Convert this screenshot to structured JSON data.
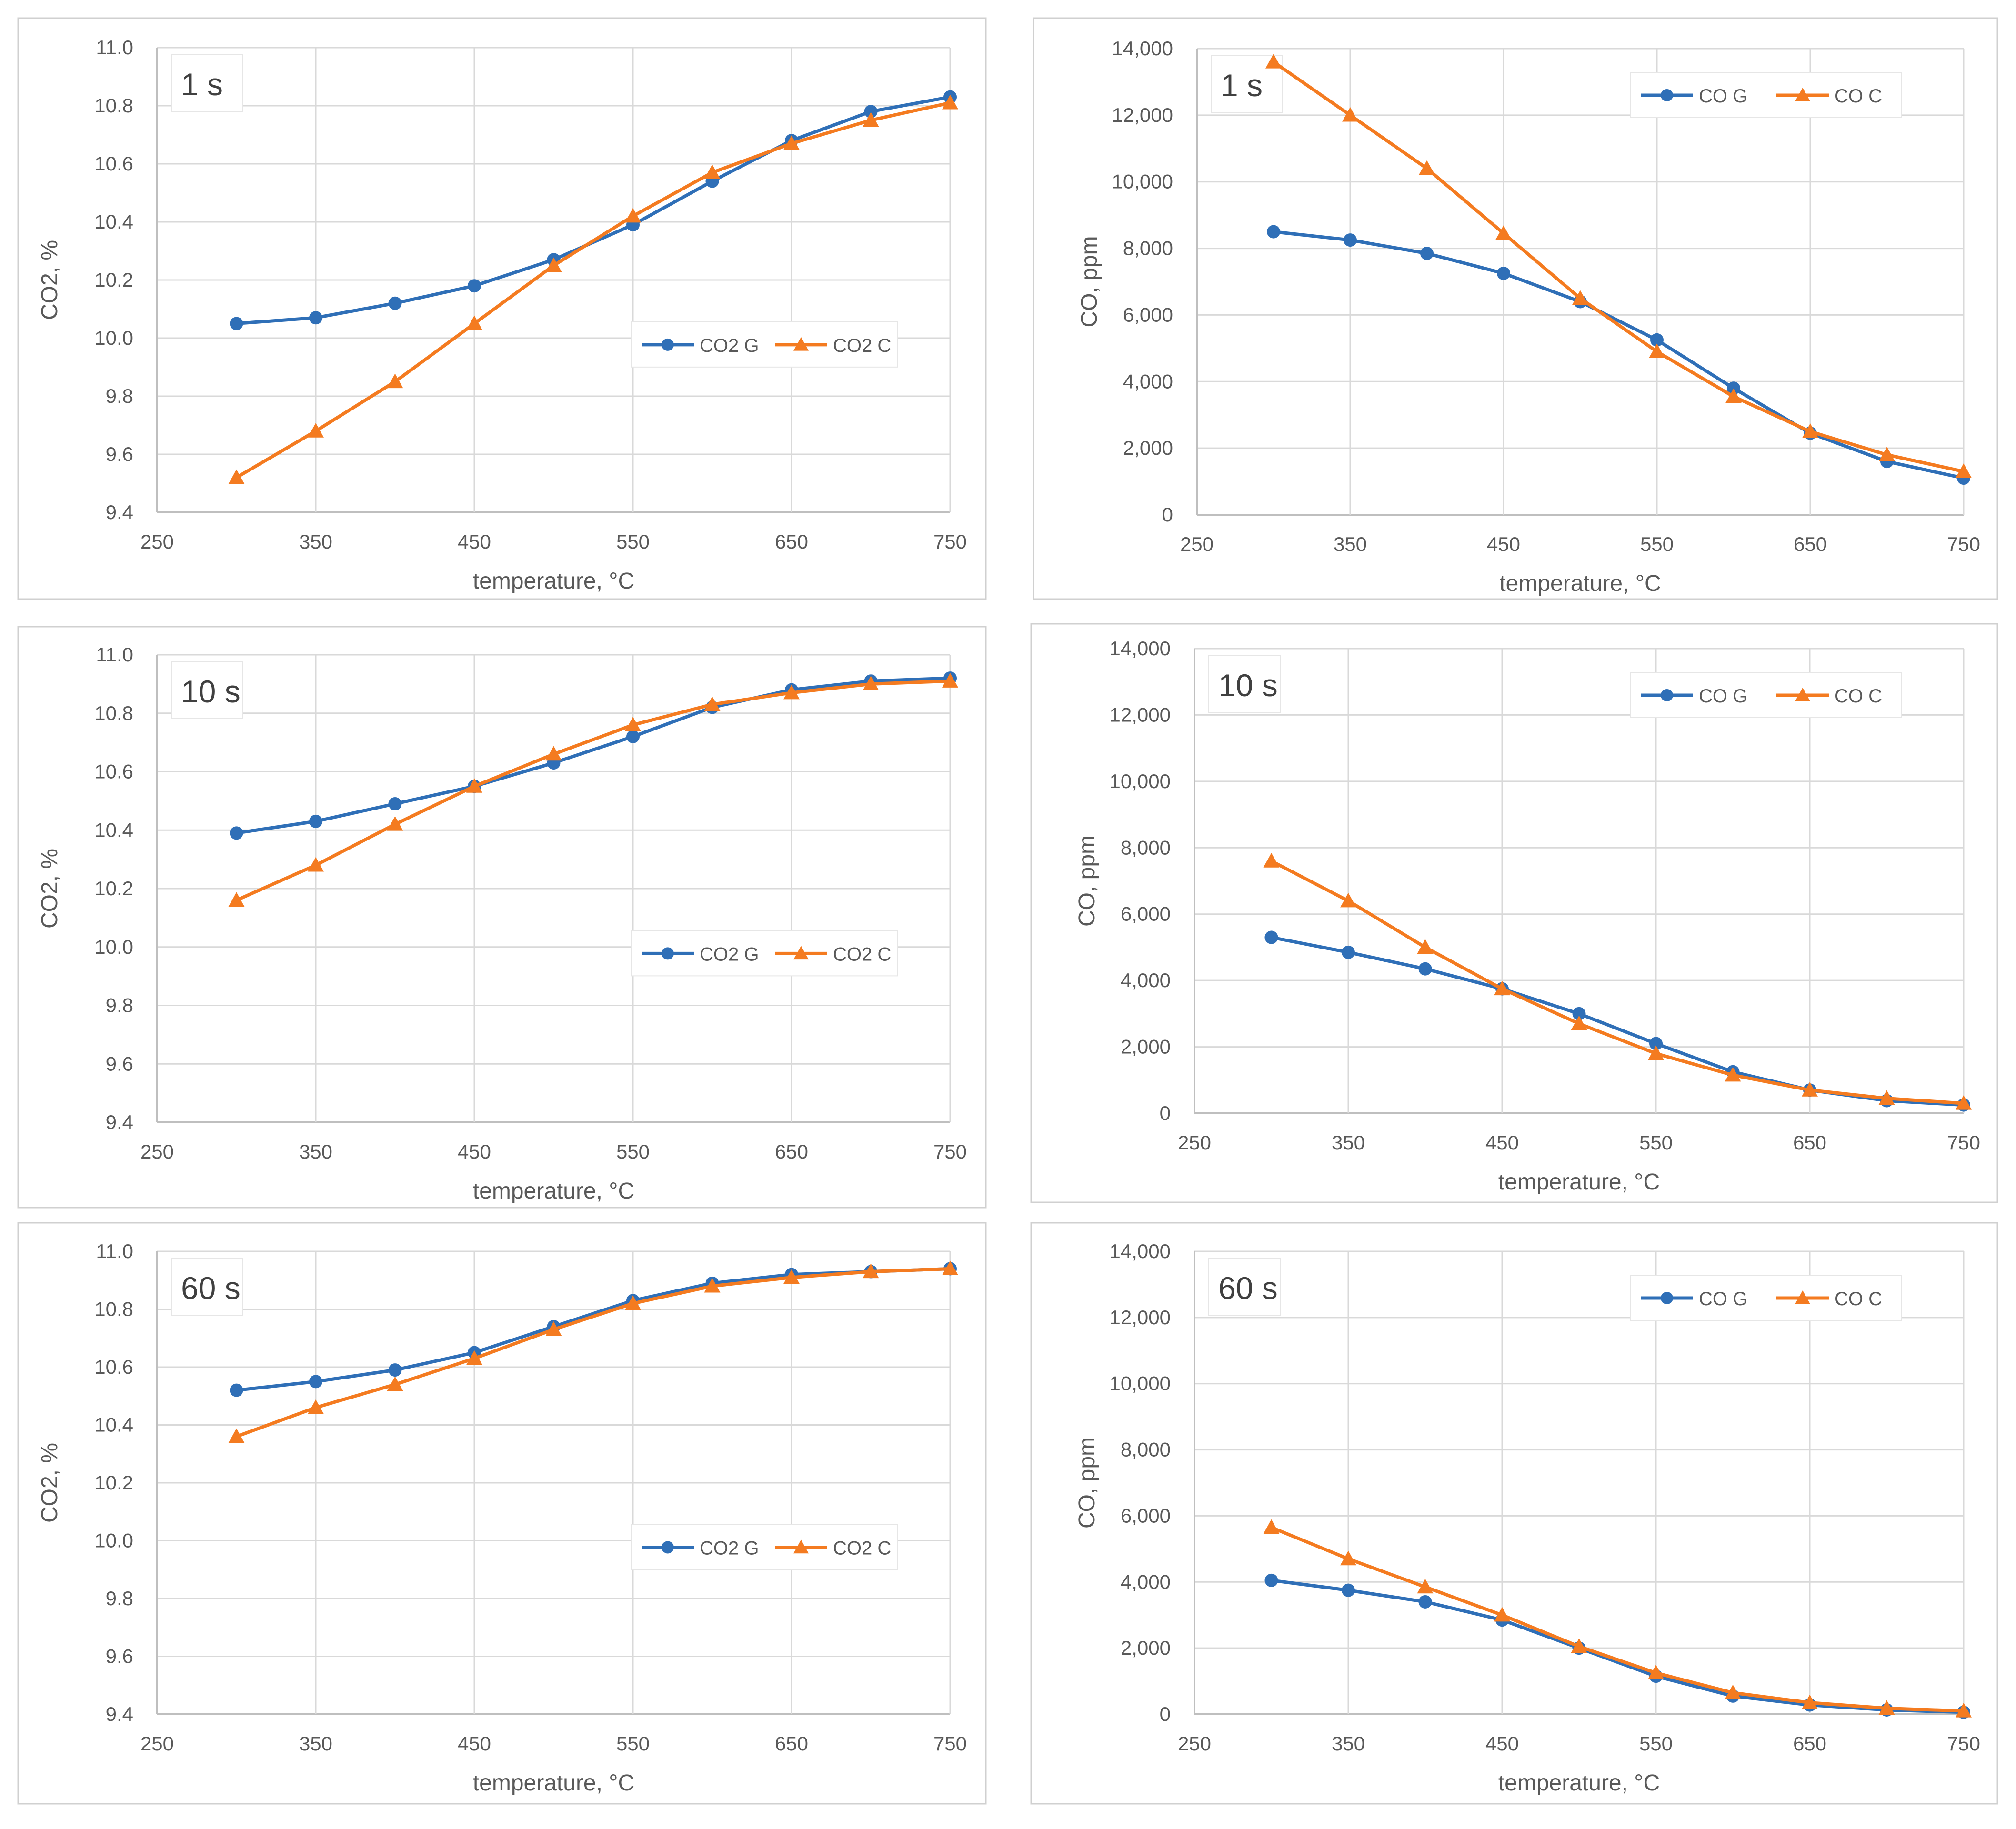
{
  "colors": {
    "g_series": "#2f6fb7",
    "c_series": "#f47b20",
    "grid": "#d9d9d9",
    "axis": "#bfbfbf",
    "text": "#595959"
  },
  "chart_data": [
    {
      "type": "line",
      "time_label": "1 s",
      "xlabel": "temperature, °C",
      "ylabel": "CO2, %",
      "xlim": [
        250,
        750
      ],
      "ylim": [
        9.4,
        11.0
      ],
      "xticks": [
        "250",
        "350",
        "450",
        "550",
        "650",
        "750"
      ],
      "yticks": [
        "9.4",
        "9.6",
        "9.8",
        "10.0",
        "10.2",
        "10.4",
        "10.6",
        "10.8",
        "11.0"
      ],
      "legend_position": "center-right",
      "x": [
        300,
        350,
        400,
        450,
        500,
        550,
        600,
        650,
        700,
        750
      ],
      "series": [
        {
          "name": "CO2 G",
          "marker": "circle",
          "values": [
            10.05,
            10.07,
            10.12,
            10.18,
            10.27,
            10.39,
            10.54,
            10.68,
            10.78,
            10.83
          ]
        },
        {
          "name": "CO2 C",
          "marker": "triangle",
          "values": [
            9.52,
            9.68,
            9.85,
            10.05,
            10.25,
            10.42,
            10.57,
            10.67,
            10.75,
            10.81
          ]
        }
      ]
    },
    {
      "type": "line",
      "time_label": "1 s",
      "xlabel": "temperature, °C",
      "ylabel": "CO, ppm",
      "xlim": [
        250,
        750
      ],
      "ylim": [
        0,
        14000
      ],
      "xticks": [
        "250",
        "350",
        "450",
        "550",
        "650",
        "750"
      ],
      "yticks": [
        "0",
        "2,000",
        "4,000",
        "6,000",
        "8,000",
        "10,000",
        "12,000",
        "14,000"
      ],
      "legend_position": "top-right",
      "x": [
        300,
        350,
        400,
        450,
        500,
        550,
        600,
        650,
        700,
        750
      ],
      "series": [
        {
          "name": "CO G",
          "marker": "circle",
          "values": [
            8500,
            8250,
            7850,
            7250,
            6400,
            5250,
            3800,
            2450,
            1600,
            1100
          ]
        },
        {
          "name": "CO C",
          "marker": "triangle",
          "values": [
            13600,
            12000,
            10400,
            8450,
            6500,
            4900,
            3550,
            2500,
            1800,
            1300
          ]
        }
      ]
    },
    {
      "type": "line",
      "time_label": "10 s",
      "xlabel": "temperature, °C",
      "ylabel": "CO2, %",
      "xlim": [
        250,
        750
      ],
      "ylim": [
        9.4,
        11.0
      ],
      "xticks": [
        "250",
        "350",
        "450",
        "550",
        "650",
        "750"
      ],
      "yticks": [
        "9.4",
        "9.6",
        "9.8",
        "10.0",
        "10.2",
        "10.4",
        "10.6",
        "10.8",
        "11.0"
      ],
      "legend_position": "center-right",
      "x": [
        300,
        350,
        400,
        450,
        500,
        550,
        600,
        650,
        700,
        750
      ],
      "series": [
        {
          "name": "CO2 G",
          "marker": "circle",
          "values": [
            10.39,
            10.43,
            10.49,
            10.55,
            10.63,
            10.72,
            10.82,
            10.88,
            10.91,
            10.92
          ]
        },
        {
          "name": "CO2 C",
          "marker": "triangle",
          "values": [
            10.16,
            10.28,
            10.42,
            10.55,
            10.66,
            10.76,
            10.83,
            10.87,
            10.9,
            10.91
          ]
        }
      ]
    },
    {
      "type": "line",
      "time_label": "10 s",
      "xlabel": "temperature, °C",
      "ylabel": "CO, ppm",
      "xlim": [
        250,
        750
      ],
      "ylim": [
        0,
        14000
      ],
      "xticks": [
        "250",
        "350",
        "450",
        "550",
        "650",
        "750"
      ],
      "yticks": [
        "0",
        "2,000",
        "4,000",
        "6,000",
        "8,000",
        "10,000",
        "12,000",
        "14,000"
      ],
      "legend_position": "top-right",
      "x": [
        300,
        350,
        400,
        450,
        500,
        550,
        600,
        650,
        700,
        750
      ],
      "series": [
        {
          "name": "CO G",
          "marker": "circle",
          "values": [
            5300,
            4850,
            4350,
            3750,
            3000,
            2100,
            1250,
            700,
            380,
            250
          ]
        },
        {
          "name": "CO C",
          "marker": "triangle",
          "values": [
            7600,
            6400,
            5000,
            3750,
            2700,
            1800,
            1150,
            700,
            450,
            300
          ]
        }
      ]
    },
    {
      "type": "line",
      "time_label": "60 s",
      "xlabel": "temperature, °C",
      "ylabel": "CO2, %",
      "xlim": [
        250,
        750
      ],
      "ylim": [
        9.4,
        11.0
      ],
      "xticks": [
        "250",
        "350",
        "450",
        "550",
        "650",
        "750"
      ],
      "yticks": [
        "9.4",
        "9.6",
        "9.8",
        "10.0",
        "10.2",
        "10.4",
        "10.6",
        "10.8",
        "11.0"
      ],
      "legend_position": "center-right",
      "x": [
        300,
        350,
        400,
        450,
        500,
        550,
        600,
        650,
        700,
        750
      ],
      "series": [
        {
          "name": "CO2 G",
          "marker": "circle",
          "values": [
            10.52,
            10.55,
            10.59,
            10.65,
            10.74,
            10.83,
            10.89,
            10.92,
            10.93,
            10.94
          ]
        },
        {
          "name": "CO2 C",
          "marker": "triangle",
          "values": [
            10.36,
            10.46,
            10.54,
            10.63,
            10.73,
            10.82,
            10.88,
            10.91,
            10.93,
            10.94
          ]
        }
      ]
    },
    {
      "type": "line",
      "time_label": "60 s",
      "xlabel": "temperature, °C",
      "ylabel": "CO, ppm",
      "xlim": [
        250,
        750
      ],
      "ylim": [
        0,
        14000
      ],
      "xticks": [
        "250",
        "350",
        "450",
        "550",
        "650",
        "750"
      ],
      "yticks": [
        "0",
        "2,000",
        "4,000",
        "6,000",
        "8,000",
        "10,000",
        "12,000",
        "14,000"
      ],
      "legend_position": "top-right",
      "x": [
        300,
        350,
        400,
        450,
        500,
        550,
        600,
        650,
        700,
        750
      ],
      "series": [
        {
          "name": "CO G",
          "marker": "circle",
          "values": [
            4050,
            3750,
            3400,
            2850,
            2000,
            1150,
            550,
            280,
            130,
            60
          ]
        },
        {
          "name": "CO C",
          "marker": "triangle",
          "values": [
            5650,
            4700,
            3850,
            3000,
            2050,
            1250,
            650,
            350,
            180,
            100
          ]
        }
      ]
    }
  ]
}
